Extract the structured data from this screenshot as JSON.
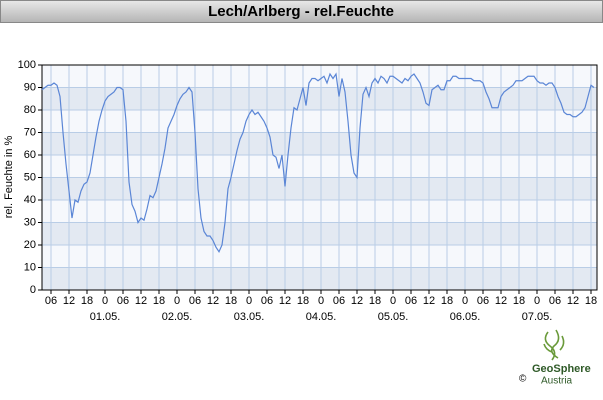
{
  "chart_data": {
    "type": "line",
    "title": "Lech/Arlberg - rel.Feuchte",
    "y_label": "rel. Feuchte in %",
    "x": [
      -21,
      -20,
      -19,
      -18,
      -17,
      -16,
      -15,
      -14,
      -13,
      -12,
      -11,
      -10,
      -9,
      -8,
      -7,
      -6,
      -5,
      -4,
      -3,
      -2,
      -1,
      0,
      1,
      2,
      3,
      4,
      5,
      6,
      7,
      8,
      9,
      10,
      11,
      12,
      13,
      14,
      15,
      16,
      17,
      18,
      19,
      20,
      21,
      22,
      23,
      24,
      25,
      26,
      27,
      28,
      29,
      30,
      31,
      32,
      33,
      34,
      35,
      36,
      37,
      38,
      39,
      40,
      41,
      42,
      43,
      44,
      45,
      46,
      47,
      48,
      49,
      50,
      51,
      52,
      53,
      54,
      55,
      56,
      57,
      58,
      59,
      60,
      61,
      62,
      63,
      64,
      65,
      66,
      67,
      68,
      69,
      70,
      71,
      72,
      73,
      74,
      75,
      76,
      77,
      78,
      79,
      80,
      81,
      82,
      83,
      84,
      85,
      86,
      87,
      88,
      89,
      90,
      91,
      92,
      93,
      94,
      95,
      96,
      97,
      98,
      99,
      100,
      101,
      102,
      103,
      104,
      105,
      106,
      107,
      108,
      109,
      110,
      111,
      112,
      113,
      114,
      115,
      116,
      117,
      118,
      119,
      120,
      121,
      122,
      123,
      124,
      125,
      126,
      127,
      128,
      129,
      130,
      131,
      132,
      133,
      134,
      135,
      136,
      137,
      138,
      139,
      140,
      141,
      142,
      143,
      144,
      145,
      146,
      147,
      148,
      149,
      150,
      151,
      152,
      153,
      154,
      155,
      156,
      157,
      158,
      159,
      160,
      161,
      162,
      163
    ],
    "values": [
      89,
      90,
      91,
      91,
      92,
      91,
      86,
      70,
      56,
      44,
      32,
      40,
      39,
      44,
      47,
      48,
      52,
      60,
      68,
      75,
      80,
      84,
      86,
      87,
      88,
      90,
      90,
      89,
      75,
      48,
      38,
      35,
      30,
      32,
      31,
      36,
      42,
      41,
      44,
      50,
      56,
      63,
      72,
      75,
      78,
      82,
      85,
      87,
      88,
      90,
      88,
      70,
      45,
      32,
      26,
      24,
      24,
      22,
      19,
      17,
      20,
      30,
      45,
      50,
      56,
      62,
      67,
      70,
      75,
      78,
      80,
      78,
      79,
      77,
      75,
      72,
      68,
      60,
      59,
      54,
      60,
      46,
      60,
      72,
      81,
      80,
      85,
      90,
      82,
      92,
      94,
      94,
      93,
      94,
      95,
      92,
      96,
      94,
      96,
      86,
      94,
      88,
      75,
      60,
      52,
      50,
      72,
      87,
      90,
      86,
      92,
      94,
      92,
      95,
      94,
      92,
      95,
      95,
      94,
      93,
      92,
      94,
      93,
      95,
      96,
      94,
      92,
      88,
      83,
      82,
      89,
      90,
      91,
      89,
      89,
      93,
      93,
      95,
      95,
      94,
      94,
      94,
      94,
      94,
      93,
      93,
      93,
      92,
      88,
      85,
      81,
      81,
      81,
      86,
      88,
      89,
      90,
      91,
      93,
      93,
      93,
      94,
      95,
      95,
      95,
      93,
      92,
      92,
      91,
      92,
      92,
      90,
      86,
      83,
      79,
      78,
      78,
      77,
      77,
      78,
      79,
      81,
      86,
      91,
      90
    ],
    "color": "#5b86d6",
    "xlim": [
      -21,
      164
    ],
    "xticks": [
      {
        "value": -18,
        "label": "06"
      },
      {
        "value": -12,
        "label": "12"
      },
      {
        "value": -6,
        "label": "18"
      },
      {
        "value": 0,
        "label": "0"
      },
      {
        "value": 6,
        "label": "06"
      },
      {
        "value": 12,
        "label": "12"
      },
      {
        "value": 18,
        "label": "18"
      },
      {
        "value": 24,
        "label": "0"
      },
      {
        "value": 30,
        "label": "06"
      },
      {
        "value": 36,
        "label": "12"
      },
      {
        "value": 42,
        "label": "18"
      },
      {
        "value": 48,
        "label": "0"
      },
      {
        "value": 54,
        "label": "06"
      },
      {
        "value": 60,
        "label": "12"
      },
      {
        "value": 66,
        "label": "18"
      },
      {
        "value": 72,
        "label": "0"
      },
      {
        "value": 78,
        "label": "06"
      },
      {
        "value": 84,
        "label": "12"
      },
      {
        "value": 90,
        "label": "18"
      },
      {
        "value": 96,
        "label": "0"
      },
      {
        "value": 102,
        "label": "06"
      },
      {
        "value": 108,
        "label": "12"
      },
      {
        "value": 114,
        "label": "18"
      },
      {
        "value": 120,
        "label": "0"
      },
      {
        "value": 126,
        "label": "06"
      },
      {
        "value": 132,
        "label": "12"
      },
      {
        "value": 138,
        "label": "18"
      },
      {
        "value": 144,
        "label": "0"
      },
      {
        "value": 150,
        "label": "06"
      },
      {
        "value": 156,
        "label": "12"
      },
      {
        "value": 162,
        "label": "18"
      }
    ],
    "date_ticks": [
      {
        "value": 0,
        "label": "01.05."
      },
      {
        "value": 24,
        "label": "02.05."
      },
      {
        "value": 48,
        "label": "03.05."
      },
      {
        "value": 72,
        "label": "04.05."
      },
      {
        "value": 96,
        "label": "05.05."
      },
      {
        "value": 120,
        "label": "06.05."
      },
      {
        "value": 144,
        "label": "07.05."
      }
    ],
    "ylim": [
      0,
      100
    ],
    "yticks": [
      0,
      10,
      20,
      30,
      40,
      50,
      60,
      70,
      80,
      90,
      100
    ],
    "grid": true
  },
  "credit": {
    "name": "GeoSphere",
    "sub": "Austria",
    "copyright": "©"
  }
}
